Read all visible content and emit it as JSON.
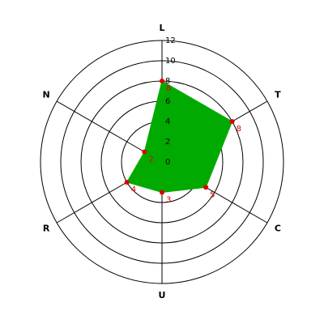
{
  "chart_data": {
    "type": "radar",
    "categories": [
      "L",
      "T",
      "C",
      "U",
      "R",
      "N"
    ],
    "values": [
      8,
      8,
      5,
      3,
      4,
      2
    ],
    "color": "#00aa00",
    "point_color": "#dd0000",
    "label_color": "#dd0000",
    "ylim": [
      0,
      12
    ],
    "yticks": [
      0,
      2,
      4,
      6,
      8,
      10,
      12
    ],
    "grid": true
  }
}
